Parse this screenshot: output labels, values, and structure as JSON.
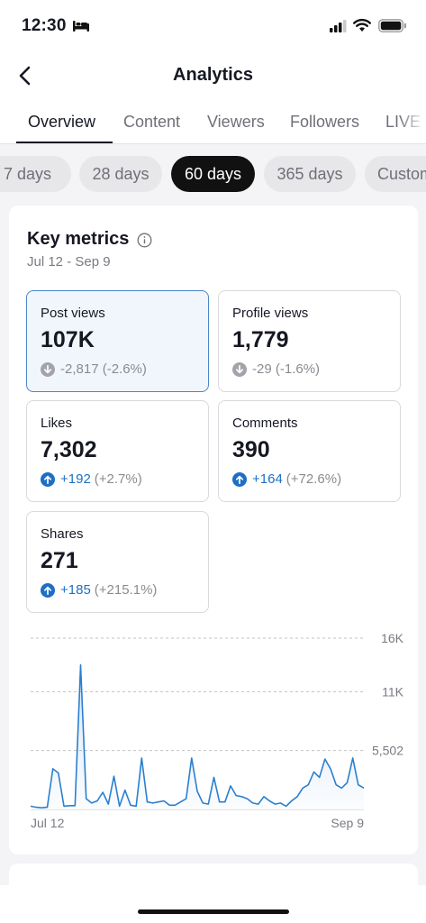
{
  "status": {
    "time": "12:30"
  },
  "header": {
    "title": "Analytics"
  },
  "tabs": [
    {
      "label": "Overview",
      "active": true
    },
    {
      "label": "Content"
    },
    {
      "label": "Viewers"
    },
    {
      "label": "Followers"
    },
    {
      "label": "LIVE"
    }
  ],
  "ranges": [
    {
      "label": "7 days"
    },
    {
      "label": "28 days"
    },
    {
      "label": "60 days",
      "active": true
    },
    {
      "label": "365 days"
    },
    {
      "label": "Custom"
    }
  ],
  "key_metrics": {
    "title": "Key metrics",
    "range": "Jul 12 - Sep 9",
    "metrics": [
      {
        "label": "Post views",
        "value": "107K",
        "delta": "-2,817",
        "pct": "(-2.6%)",
        "dir": "down",
        "selected": true
      },
      {
        "label": "Profile views",
        "value": "1,779",
        "delta": "-29",
        "pct": "(-1.6%)",
        "dir": "down"
      },
      {
        "label": "Likes",
        "value": "7,302",
        "delta": "+192",
        "pct": "(+2.7%)",
        "dir": "up"
      },
      {
        "label": "Comments",
        "value": "390",
        "delta": "+164",
        "pct": "(+72.6%)",
        "dir": "up"
      },
      {
        "label": "Shares",
        "value": "271",
        "delta": "+185",
        "pct": "(+215.1%)",
        "dir": "up"
      }
    ]
  },
  "colors": {
    "accent": "#1e6fc4",
    "line": "#2b7fcf",
    "selected_bg": "#f1f6fd"
  },
  "chart_data": {
    "type": "area",
    "title": "",
    "xlabel": "",
    "ylabel": "",
    "x_tick_labels": [
      "Jul 12",
      "Sep 9"
    ],
    "y_tick_labels": [
      "5,502",
      "11K",
      "16K"
    ],
    "y_ticks": [
      5502,
      11000,
      16000
    ],
    "ylim": [
      0,
      16000
    ],
    "grid": "dashed horizontal",
    "series": [
      {
        "values": [
          300,
          200,
          150,
          200,
          3800,
          3400,
          300,
          350,
          350,
          13500,
          1000,
          600,
          800,
          1600,
          500,
          3100,
          300,
          1800,
          400,
          300,
          4800,
          700,
          600,
          700,
          800,
          400,
          400,
          700,
          1000,
          4800,
          1700,
          600,
          500,
          3000,
          700,
          700,
          2200,
          1300,
          1200,
          1000,
          600,
          500,
          1200,
          800,
          500,
          600,
          300,
          800,
          1200,
          2000,
          2300,
          3500,
          3000,
          4700,
          3800,
          2300,
          2000,
          2500,
          4800,
          2300,
          2000
        ]
      }
    ]
  }
}
